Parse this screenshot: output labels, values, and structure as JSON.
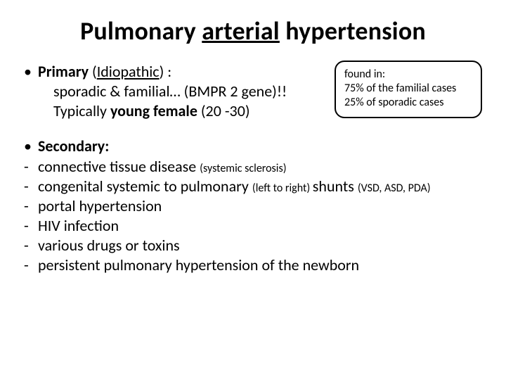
{
  "title_parts": {
    "pre": "Pulmonary ",
    "underlined": "arterial",
    "post": " hypertension"
  },
  "primary": {
    "bullet_dot": "•",
    "label_bold1": "Primary",
    "label_plain1": " (",
    "label_underlined": "Idiopathic",
    "label_plain2": ") :",
    "line2": "sporadic & familial… (BMPR 2 gene)!!",
    "line3_pre": "Typically ",
    "line3_bold": "young female",
    "line3_post": " (20 -30)"
  },
  "callout": {
    "line1": "found in:",
    "line2": "75% of the familial cases",
    "line3": "25% of sporadic cases"
  },
  "secondary": {
    "bullet_dot": "•",
    "heading": "Secondary:",
    "dash": "-",
    "items": [
      {
        "main": "connective tissue disease ",
        "small": "(systemic sclerosis)",
        "tail": ""
      },
      {
        "main": "congenital systemic to pulmonary ",
        "small": "(left to right) ",
        "tail": "shunts ",
        "tail_small": "(VSD, ASD, PDA)"
      },
      {
        "main": "portal hypertension",
        "small": "",
        "tail": ""
      },
      {
        "main": "HIV infection",
        "small": "",
        "tail": ""
      },
      {
        "main": "various drugs or toxins",
        "small": "",
        "tail": ""
      },
      {
        "main": "persistent pulmonary hypertension of the newborn",
        "small": "",
        "tail": ""
      }
    ]
  }
}
